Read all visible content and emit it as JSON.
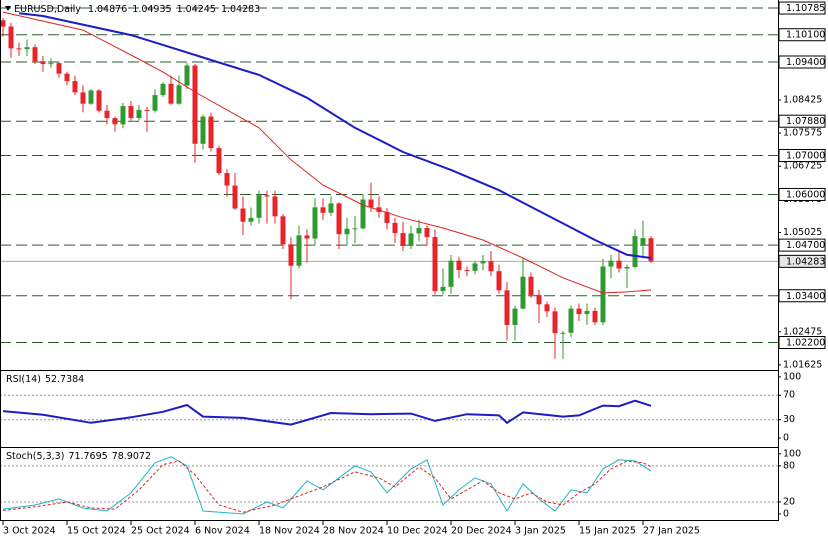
{
  "header": {
    "symbol": "EURUSD,Daily",
    "ohlc": [
      1.04876,
      1.04935,
      1.04245,
      1.04283
    ]
  },
  "chart_data": [
    {
      "type": "candlestick",
      "categories": [
        "3 Oct 2024",
        null,
        null,
        null,
        null,
        null,
        null,
        null,
        "15 Oct 2024",
        null,
        null,
        null,
        null,
        null,
        null,
        null,
        "25 Oct 2024",
        null,
        null,
        null,
        null,
        null,
        null,
        null,
        "6 Nov 2024",
        null,
        null,
        null,
        null,
        null,
        null,
        null,
        "18 Nov 2024",
        null,
        null,
        null,
        null,
        null,
        null,
        null,
        "28 Nov 2024",
        null,
        null,
        null,
        null,
        null,
        null,
        null,
        "10 Dec 2024",
        null,
        null,
        null,
        null,
        null,
        null,
        null,
        "20 Dec 2024",
        null,
        null,
        null,
        null,
        null,
        null,
        null,
        "3 Jan 2025",
        null,
        null,
        null,
        null,
        null,
        null,
        null,
        "15 Jan 2025",
        null,
        null,
        null,
        null,
        null,
        null,
        null,
        "27 Jan 2025",
        null
      ],
      "open": [
        1.1047,
        1.1031,
        1.0975,
        1.0973,
        1.0978,
        1.0942,
        1.0935,
        1.0937,
        1.091,
        1.0891,
        1.0862,
        1.0833,
        1.0867,
        1.0815,
        1.0796,
        1.078,
        1.0827,
        1.0796,
        1.0817,
        1.0815,
        1.0855,
        1.0884,
        1.0833,
        1.088,
        1.0931,
        1.073,
        1.08,
        1.0719,
        1.0655,
        1.0623,
        1.0564,
        1.053,
        1.054,
        1.0598,
        1.0595,
        1.0544,
        1.0472,
        1.0417,
        1.0495,
        1.0487,
        1.0567,
        1.0553,
        1.0577,
        1.0498,
        1.0512,
        1.0513,
        1.0587,
        1.0567,
        1.0555,
        1.0527,
        1.0501,
        1.0468,
        1.05,
        1.0514,
        1.0491,
        1.0352,
        1.0363,
        1.043,
        1.0406,
        1.0404,
        1.0423,
        1.0429,
        1.0403,
        1.0354,
        1.0265,
        1.0307,
        1.0389,
        1.0342,
        1.0318,
        1.03,
        1.0244,
        1.0245,
        1.0307,
        1.0293,
        1.0301,
        1.0272,
        1.0415,
        1.043,
        1.041,
        1.0414,
        1.047,
        1.04876
      ],
      "high": [
        1.1053,
        1.104,
        1.099,
        1.0998,
        1.0985,
        1.0955,
        1.095,
        1.094,
        1.0915,
        1.0905,
        1.088,
        1.087,
        1.087,
        1.083,
        1.08,
        1.0835,
        1.084,
        1.083,
        1.0825,
        1.087,
        1.0888,
        1.0905,
        1.0905,
        1.0937,
        1.0935,
        1.0805,
        1.081,
        1.0725,
        1.0665,
        1.0655,
        1.0595,
        1.0567,
        1.061,
        1.061,
        1.061,
        1.055,
        1.049,
        1.052,
        1.051,
        1.059,
        1.059,
        1.0595,
        1.058,
        1.054,
        1.0545,
        1.06,
        1.063,
        1.0595,
        1.0565,
        1.054,
        1.053,
        1.052,
        1.0535,
        1.052,
        1.051,
        1.041,
        1.0445,
        1.044,
        1.0415,
        1.043,
        1.0445,
        1.0455,
        1.042,
        1.0375,
        1.0315,
        1.0435,
        1.04,
        1.0355,
        1.0325,
        1.031,
        1.025,
        1.0315,
        1.032,
        1.032,
        1.031,
        1.0435,
        1.0445,
        1.0455,
        1.042,
        1.051,
        1.0533,
        1.04935
      ],
      "low": [
        1.1005,
        1.0951,
        1.0955,
        1.0955,
        1.0935,
        1.0915,
        1.0925,
        1.09,
        1.088,
        1.0855,
        1.0811,
        1.083,
        1.081,
        1.078,
        1.0761,
        1.077,
        1.079,
        1.079,
        1.076,
        1.081,
        1.085,
        1.083,
        1.083,
        1.087,
        1.0682,
        1.0715,
        1.071,
        1.065,
        1.0595,
        1.056,
        1.0496,
        1.052,
        1.0525,
        1.0525,
        1.0525,
        1.046,
        1.0332,
        1.041,
        1.0425,
        1.047,
        1.0535,
        1.0545,
        1.046,
        1.047,
        1.0475,
        1.051,
        1.0555,
        1.054,
        1.051,
        1.0475,
        1.0455,
        1.046,
        1.048,
        1.047,
        1.0343,
        1.0343,
        1.0345,
        1.0385,
        1.039,
        1.0395,
        1.0405,
        1.039,
        1.0345,
        1.0225,
        1.0225,
        1.0305,
        1.0335,
        1.027,
        1.0285,
        1.0178,
        1.0178,
        1.0233,
        1.0275,
        1.0265,
        1.0265,
        1.0265,
        1.0385,
        1.04,
        1.036,
        1.041,
        1.0436,
        1.04245
      ],
      "close": [
        1.1031,
        1.0975,
        1.0973,
        1.0978,
        1.0942,
        1.0935,
        1.0937,
        1.091,
        1.0891,
        1.0862,
        1.0833,
        1.0867,
        1.0815,
        1.0796,
        1.078,
        1.0827,
        1.0796,
        1.0817,
        1.0815,
        1.0855,
        1.0884,
        1.0833,
        1.088,
        1.0931,
        1.073,
        1.08,
        1.0719,
        1.0655,
        1.0623,
        1.0564,
        1.053,
        1.054,
        1.0598,
        1.0595,
        1.0544,
        1.0472,
        1.0417,
        1.0495,
        1.0487,
        1.0567,
        1.0553,
        1.0577,
        1.0498,
        1.0512,
        1.0513,
        1.0587,
        1.0567,
        1.0555,
        1.0527,
        1.0501,
        1.0468,
        1.05,
        1.0514,
        1.0491,
        1.0352,
        1.0363,
        1.043,
        1.0406,
        1.0404,
        1.0423,
        1.0429,
        1.0403,
        1.0354,
        1.0265,
        1.0307,
        1.0389,
        1.0342,
        1.0318,
        1.03,
        1.0244,
        1.0245,
        1.0307,
        1.0293,
        1.0301,
        1.0272,
        1.0415,
        1.043,
        1.041,
        1.0414,
        1.0493,
        1.0488,
        1.04283
      ],
      "up_color": "#2f9a2f",
      "down_color": "#e8232a",
      "ylim": [
        1.0152,
        1.1094
      ],
      "yticks": [
        1.08425,
        1.07575,
        1.06725,
        1.05875,
        1.05025,
        1.03325,
        1.02475,
        1.01625
      ],
      "levels": [
        {
          "value": 1.10785,
          "label": "1.10785"
        },
        {
          "value": 1.101,
          "label": "1.10100"
        },
        {
          "value": 1.094,
          "label": "1.09400"
        },
        {
          "value": 1.0788,
          "label": "1.07880"
        },
        {
          "value": 1.07,
          "label": "1.07000"
        },
        {
          "value": 1.06,
          "label": "1.06000"
        },
        {
          "value": 1.047,
          "label": "1.04700"
        },
        {
          "value": 1.034,
          "label": "1.03400"
        },
        {
          "value": 1.022,
          "label": "1.02200"
        }
      ],
      "level_color": "#2c5a2c",
      "current_price": 1.04283,
      "lines": [
        {
          "color": "#1c1cc8",
          "width": 2,
          "x": [
            2,
            5,
            16,
            20,
            26,
            32,
            38,
            44,
            50,
            56,
            62,
            68,
            74,
            78,
            81
          ],
          "values": [
            1.1065,
            1.1058,
            1.1009,
            1.0984,
            1.0945,
            1.0907,
            1.0848,
            1.0771,
            1.0709,
            1.0663,
            1.0611,
            1.0547,
            1.0483,
            1.0445,
            1.0437
          ]
        },
        {
          "color": "#e0241e",
          "width": 1,
          "x": [
            0,
            10,
            16,
            20,
            24,
            28,
            32,
            36,
            40,
            45,
            50,
            55,
            60,
            65,
            70,
            75,
            78,
            81
          ],
          "values": [
            1.1068,
            1.1022,
            1.0958,
            1.0914,
            1.0863,
            1.0817,
            1.0771,
            1.0689,
            1.0624,
            1.0573,
            1.054,
            1.0514,
            1.0483,
            1.0437,
            1.0386,
            1.0347,
            1.035,
            1.0355
          ]
        }
      ]
    },
    {
      "type": "line",
      "title": "RSI(14)",
      "readout": [
        52.7384
      ],
      "ylim": [
        -13,
        108
      ],
      "yticks": [
        100,
        70,
        30,
        0
      ],
      "levels": [
        70,
        30
      ],
      "series": [
        {
          "color": "#1c1cc8",
          "width": 2,
          "x": [
            0,
            5,
            11,
            16,
            20,
            23,
            25,
            30,
            36,
            41,
            46,
            51,
            54,
            58,
            62,
            63,
            65,
            70,
            72,
            75,
            77,
            79,
            81
          ],
          "values": [
            44,
            38,
            25,
            34,
            43,
            54,
            35,
            33,
            22,
            41,
            39,
            40,
            28,
            39,
            37,
            25,
            42,
            35,
            37,
            53,
            52,
            61,
            52.7384
          ]
        }
      ]
    },
    {
      "type": "line",
      "title": "Stoch(5,3,3)",
      "readout": [
        71.7695,
        78.9072
      ],
      "ylim": [
        -10,
        108
      ],
      "yticks": [
        100,
        80,
        20,
        0
      ],
      "levels": [
        80,
        20
      ],
      "series": [
        {
          "color": "#1fb4c8",
          "width": 1,
          "x": [
            0,
            4,
            7,
            10,
            13,
            16,
            19,
            21,
            23,
            25,
            28,
            30,
            33,
            35,
            38,
            40,
            44,
            46,
            48,
            51,
            53,
            55,
            57,
            59,
            61,
            63,
            65,
            67,
            69,
            71,
            73,
            75,
            77,
            79,
            81
          ],
          "values": [
            8,
            15,
            25,
            10,
            5,
            35,
            85,
            95,
            80,
            5,
            2,
            0,
            20,
            10,
            55,
            40,
            80,
            70,
            35,
            75,
            90,
            15,
            40,
            60,
            50,
            5,
            50,
            25,
            5,
            40,
            35,
            75,
            90,
            88,
            71.7695
          ]
        },
        {
          "color": "#e0241e",
          "width": 1,
          "dashed": true,
          "x": [
            0,
            4,
            8,
            11,
            14,
            17,
            20,
            22,
            24,
            27,
            30,
            34,
            37,
            40,
            44,
            47,
            49,
            52,
            54,
            56,
            58,
            60,
            62,
            64,
            66,
            68,
            70,
            72,
            74,
            76,
            78,
            80,
            81
          ],
          "values": [
            6,
            12,
            20,
            10,
            8,
            40,
            82,
            88,
            65,
            15,
            3,
            15,
            30,
            45,
            70,
            60,
            45,
            78,
            60,
            25,
            40,
            55,
            35,
            25,
            35,
            20,
            15,
            35,
            50,
            75,
            88,
            85,
            78.9072
          ]
        }
      ]
    }
  ]
}
